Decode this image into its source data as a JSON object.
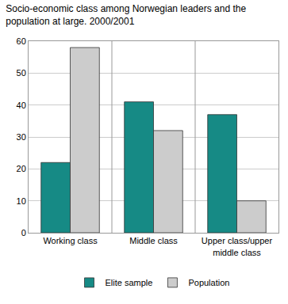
{
  "chart_data": {
    "type": "bar",
    "title": "Socio-economic class among Norwegian leaders and the population at large. 2000/2001",
    "categories": [
      "Working class",
      "Middle class",
      "Upper class/upper middle class"
    ],
    "series": [
      {
        "name": "Elite sample",
        "color": "#168a85",
        "values": [
          22,
          41,
          37
        ]
      },
      {
        "name": "Population",
        "color": "#cccccc",
        "values": [
          58,
          32,
          10
        ]
      }
    ],
    "ylim": [
      0,
      60
    ],
    "yticks": [
      0,
      10,
      20,
      30,
      40,
      50,
      60
    ],
    "grid": true,
    "legend": "bottom"
  }
}
